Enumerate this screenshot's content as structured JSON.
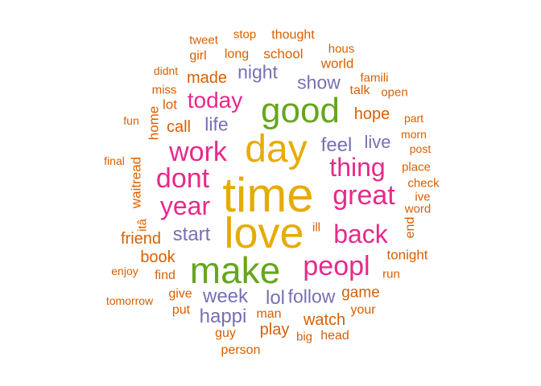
{
  "palette": {
    "orange": "#D95F02",
    "purple": "#7570B3",
    "pink": "#E7298A",
    "green": "#66A61E",
    "gold": "#E6AB02"
  },
  "words": [
    {
      "text": "time",
      "color": "gold",
      "weight": 10
    },
    {
      "text": "love",
      "color": "gold",
      "weight": 9.5
    },
    {
      "text": "day",
      "color": "gold",
      "weight": 8.5
    },
    {
      "text": "make",
      "color": "green",
      "weight": 8
    },
    {
      "text": "good",
      "color": "green",
      "weight": 7.5
    },
    {
      "text": "peopl",
      "color": "pink",
      "weight": 6
    },
    {
      "text": "work",
      "color": "pink",
      "weight": 6
    },
    {
      "text": "dont",
      "color": "pink",
      "weight": 6
    },
    {
      "text": "great",
      "color": "pink",
      "weight": 6
    },
    {
      "text": "thing",
      "color": "pink",
      "weight": 5.5
    },
    {
      "text": "back",
      "color": "pink",
      "weight": 5.5
    },
    {
      "text": "year",
      "color": "pink",
      "weight": 5.5
    },
    {
      "text": "today",
      "color": "pink",
      "weight": 5
    },
    {
      "text": "feel",
      "color": "purple",
      "weight": 4
    },
    {
      "text": "start",
      "color": "purple",
      "weight": 4
    },
    {
      "text": "week",
      "color": "purple",
      "weight": 4
    },
    {
      "text": "happi",
      "color": "purple",
      "weight": 4
    },
    {
      "text": "lol",
      "color": "purple",
      "weight": 4
    },
    {
      "text": "follow",
      "color": "purple",
      "weight": 4
    },
    {
      "text": "night",
      "color": "purple",
      "weight": 3.5
    },
    {
      "text": "show",
      "color": "purple",
      "weight": 3.5
    },
    {
      "text": "life",
      "color": "purple",
      "weight": 3.5
    },
    {
      "text": "live",
      "color": "purple",
      "weight": 3.5
    },
    {
      "text": "hope",
      "color": "orange",
      "weight": 3
    },
    {
      "text": "friend",
      "color": "orange",
      "weight": 3
    },
    {
      "text": "book",
      "color": "orange",
      "weight": 3
    },
    {
      "text": "call",
      "color": "orange",
      "weight": 3
    },
    {
      "text": "made",
      "color": "orange",
      "weight": 3
    },
    {
      "text": "watch",
      "color": "orange",
      "weight": 3
    },
    {
      "text": "play",
      "color": "orange",
      "weight": 3
    },
    {
      "text": "game",
      "color": "orange",
      "weight": 3
    },
    {
      "text": "tonight",
      "color": "orange",
      "weight": 2.5
    },
    {
      "text": "lot",
      "color": "orange",
      "weight": 2.5
    },
    {
      "text": "home",
      "color": "orange",
      "weight": 2.5
    },
    {
      "text": "waitread",
      "color": "orange",
      "weight": 2.5
    },
    {
      "text": "world",
      "color": "orange",
      "weight": 2.5
    },
    {
      "text": "school",
      "color": "orange",
      "weight": 2.5
    },
    {
      "text": "thought",
      "color": "orange",
      "weight": 2.5
    },
    {
      "text": "long",
      "color": "orange",
      "weight": 2.5
    },
    {
      "text": "girl",
      "color": "orange",
      "weight": 2.5
    },
    {
      "text": "talk",
      "color": "orange",
      "weight": 2.5
    },
    {
      "text": "find",
      "color": "orange",
      "weight": 2.5
    },
    {
      "text": "give",
      "color": "orange",
      "weight": 2.5
    },
    {
      "text": "put",
      "color": "orange",
      "weight": 2.5
    },
    {
      "text": "man",
      "color": "orange",
      "weight": 2.5
    },
    {
      "text": "guy",
      "color": "orange",
      "weight": 2.5
    },
    {
      "text": "your",
      "color": "orange",
      "weight": 2.5
    },
    {
      "text": "head",
      "color": "orange",
      "weight": 2.5
    },
    {
      "text": "person",
      "color": "orange",
      "weight": 2.5
    },
    {
      "text": "end",
      "color": "orange",
      "weight": 2.5
    },
    {
      "text": "tweet",
      "color": "orange",
      "weight": 2
    },
    {
      "text": "stop",
      "color": "orange",
      "weight": 2
    },
    {
      "text": "hous",
      "color": "orange",
      "weight": 2
    },
    {
      "text": "famili",
      "color": "orange",
      "weight": 2
    },
    {
      "text": "open",
      "color": "orange",
      "weight": 2
    },
    {
      "text": "didnt",
      "color": "orange",
      "weight": 2
    },
    {
      "text": "miss",
      "color": "orange",
      "weight": 2
    },
    {
      "text": "fun",
      "color": "orange",
      "weight": 2
    },
    {
      "text": "part",
      "color": "orange",
      "weight": 2
    },
    {
      "text": "morn",
      "color": "orange",
      "weight": 2
    },
    {
      "text": "post",
      "color": "orange",
      "weight": 2
    },
    {
      "text": "place",
      "color": "orange",
      "weight": 2
    },
    {
      "text": "check",
      "color": "orange",
      "weight": 2
    },
    {
      "text": "ive",
      "color": "orange",
      "weight": 2
    },
    {
      "text": "word",
      "color": "orange",
      "weight": 2
    },
    {
      "text": "final",
      "color": "orange",
      "weight": 2
    },
    {
      "text": "itâ",
      "color": "orange",
      "weight": 2
    },
    {
      "text": "ill",
      "color": "orange",
      "weight": 2
    },
    {
      "text": "run",
      "color": "orange",
      "weight": 2
    },
    {
      "text": "enjoy",
      "color": "orange",
      "weight": 2
    },
    {
      "text": "tomorrow",
      "color": "orange",
      "weight": 2
    },
    {
      "text": "big",
      "color": "orange",
      "weight": 2
    }
  ]
}
